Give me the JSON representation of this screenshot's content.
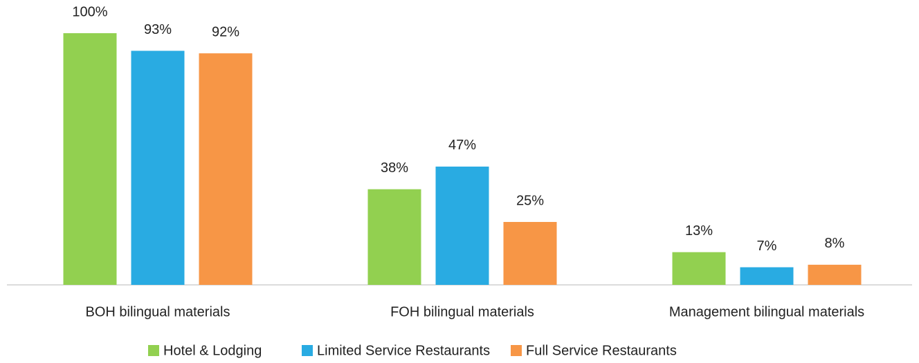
{
  "chart_data": {
    "type": "bar",
    "categories": [
      "BOH bilingual materials",
      "FOH bilingual materials",
      "Management bilingual materials"
    ],
    "series": [
      {
        "name": "Hotel & Lodging",
        "color": "#92d050",
        "values": [
          100,
          38,
          13
        ],
        "value_labels": [
          "100%",
          "38%",
          "13%"
        ]
      },
      {
        "name": "Limited Service Restaurants",
        "color": "#29abe2",
        "values": [
          93,
          47,
          7
        ],
        "value_labels": [
          "93%",
          "47%",
          "7%"
        ]
      },
      {
        "name": "Full Service Restaurants",
        "color": "#f79646",
        "values": [
          92,
          25,
          8
        ],
        "value_labels": [
          "92%",
          "25%",
          "8%"
        ]
      }
    ],
    "legend": "bottom"
  }
}
